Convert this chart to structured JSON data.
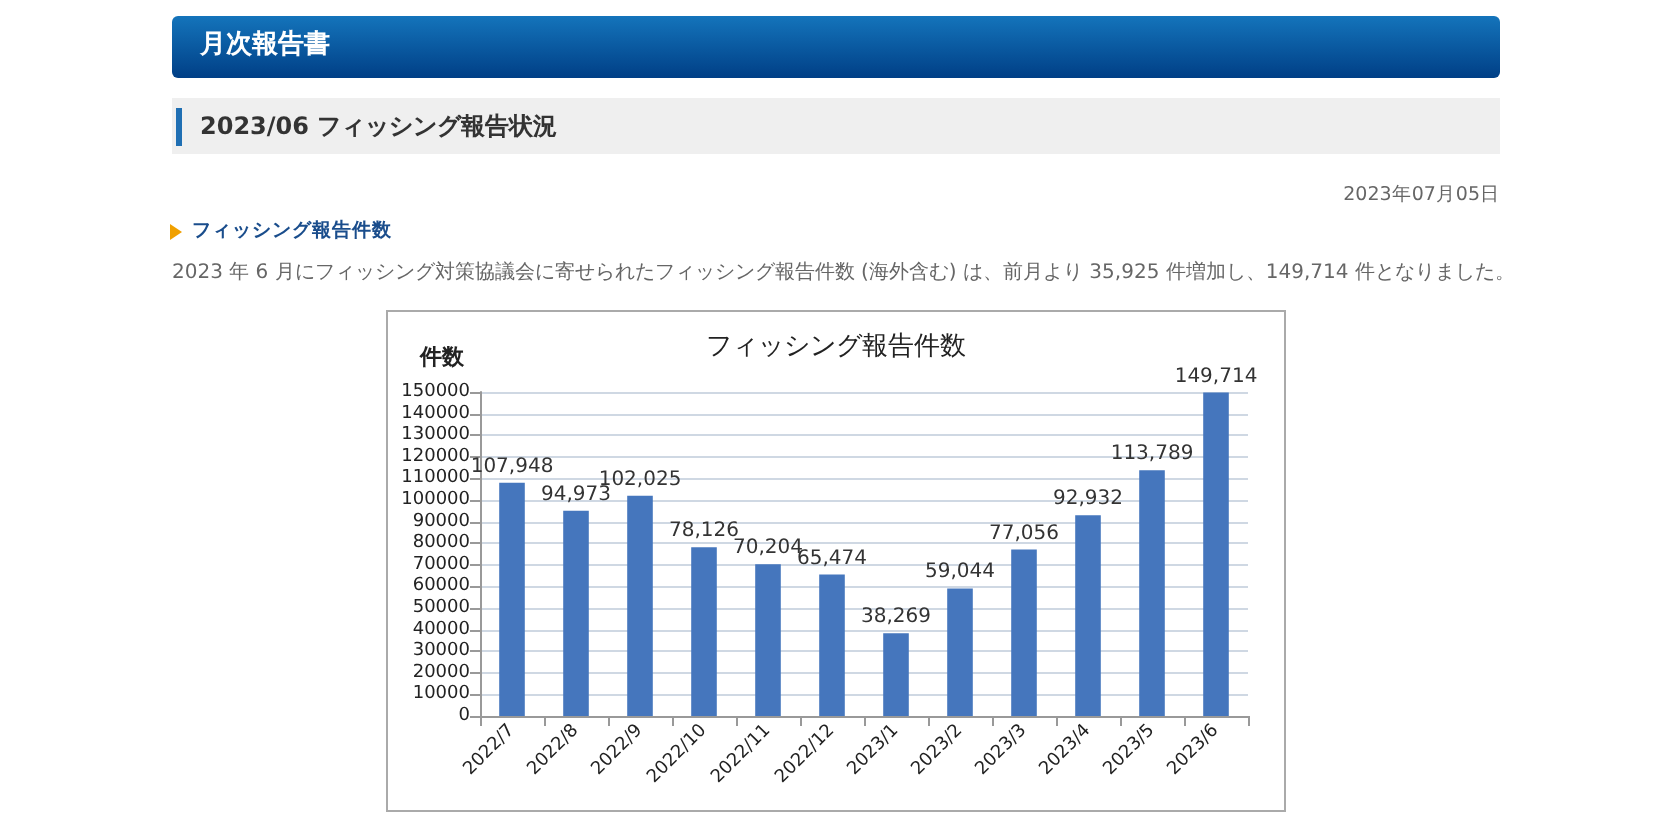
{
  "chart_data": {
    "type": "bar",
    "title": "フィッシング報告件数",
    "ylabel": "件数",
    "annotations": [
      "月次報告書",
      "2023/06 フィッシング報告状況",
      "2023年07月05日",
      "フィッシング報告件数",
      "2023 年 6 月にフィッシング対策協議会に寄せられたフィッシング報告件数 (海外含む) は、前月より 35,925 件増加し、149,714 件となりました。"
    ],
    "categories": [
      "2022/7",
      "2022/8",
      "2022/9",
      "2022/10",
      "2022/11",
      "2022/12",
      "2023/1",
      "2023/2",
      "2023/3",
      "2023/4",
      "2023/5",
      "2023/6"
    ],
    "values": [
      107948,
      94973,
      102025,
      78126,
      70204,
      65474,
      38269,
      59044,
      77056,
      92932,
      113789,
      149714
    ],
    "value_labels": [
      "107,948",
      "94,973",
      "102,025",
      "78,126",
      "70,204",
      "65,474",
      "38,269",
      "59,044",
      "77,056",
      "92,932",
      "113,789",
      "149,714"
    ],
    "color": "#4576bd",
    "ylim": [
      0,
      150000
    ],
    "yticks": [
      0,
      10000,
      20000,
      30000,
      40000,
      50000,
      60000,
      70000,
      80000,
      90000,
      100000,
      110000,
      120000,
      130000,
      140000,
      150000
    ],
    "grid": "y"
  }
}
